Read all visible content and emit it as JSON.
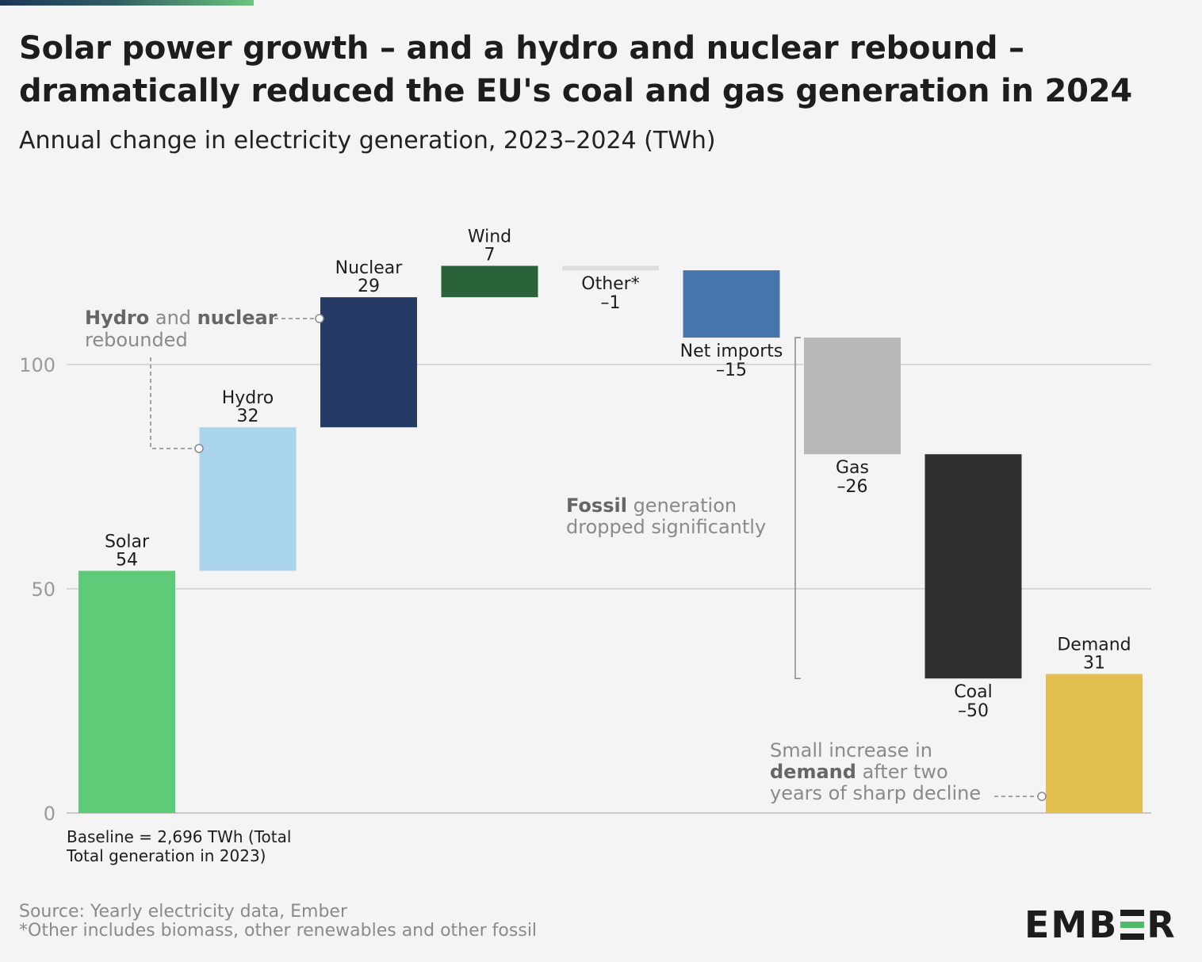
{
  "title": "Solar power growth – and a hydro and nuclear rebound – dramatically reduced the EU's coal and gas generation in 2024",
  "subtitle": "Annual change in electricity generation, 2023–2024 (TWh)",
  "source": "Source: Yearly electricity data, Ember",
  "footnote": "*Other includes biomass, other renewables and other fossil",
  "logo": {
    "text_left": "EMB",
    "text_right": "R"
  },
  "chart_data": {
    "type": "bar",
    "subtype": "waterfall",
    "ylim": [
      0,
      120
    ],
    "yticks": [
      0,
      50,
      100
    ],
    "grid": true,
    "baseline_note": "Baseline = 2,696 TWh (Total generation in 2023)",
    "categories": [
      "Solar",
      "Hydro",
      "Nuclear",
      "Wind",
      "Other*",
      "Net imports",
      "Gas",
      "Coal",
      "Demand"
    ],
    "values": [
      54,
      32,
      29,
      7,
      -1,
      -15,
      -26,
      -50,
      31
    ],
    "value_labels": [
      "54",
      "32",
      "29",
      "7",
      "–1",
      "–15",
      "–26",
      "–50",
      "31"
    ],
    "colors": [
      "#5ecb78",
      "#abd4ed",
      "#253b66",
      "#2a6239",
      "#dcdcdc",
      "#4575aa",
      "#b8b8b8",
      "#303030",
      "#e2bf4f"
    ],
    "annotations": [
      {
        "bold": "Hydro",
        "mid": " and ",
        "bold2": "nuclear",
        "line2": "rebounded"
      },
      {
        "bold": "Fossil",
        "rest": " generation",
        "line2": "dropped significantly"
      },
      {
        "line1": "Small increase in",
        "bold": "demand",
        "rest": " after two",
        "line3": "years of sharp decline"
      }
    ]
  }
}
